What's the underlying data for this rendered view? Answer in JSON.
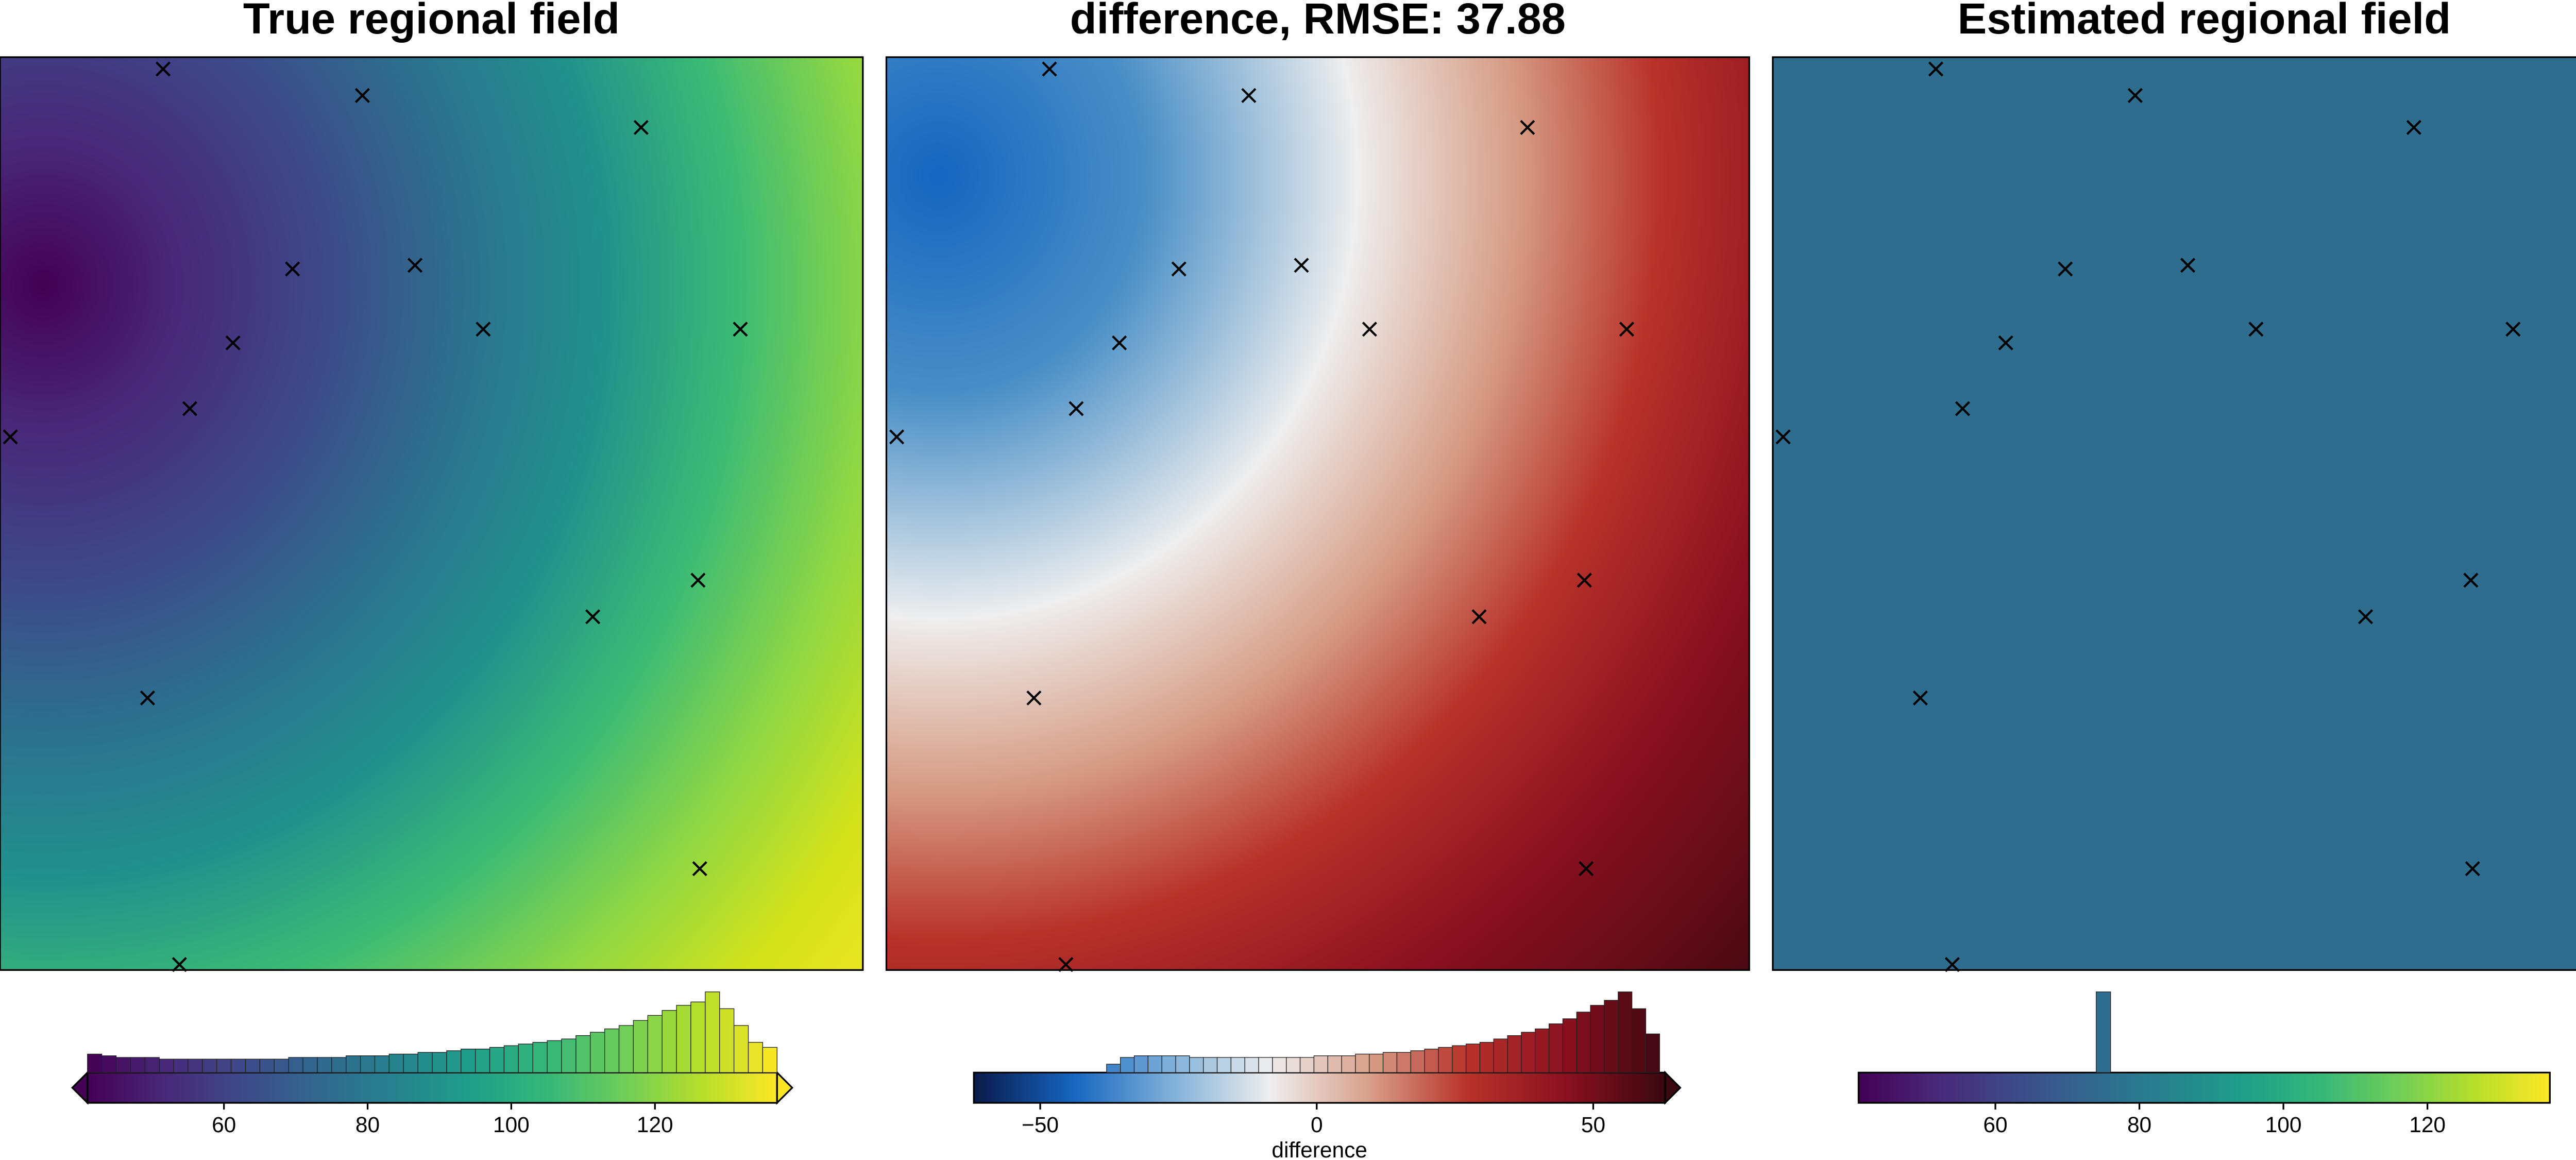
{
  "chart_data": [
    {
      "type": "heatmap",
      "title": "True regional field",
      "colormap": [
        "#440154",
        "#482878",
        "#3e4989",
        "#31688e",
        "#26828e",
        "#1f9e89",
        "#35b779",
        "#6ece58",
        "#b5de2b",
        "#fde725"
      ],
      "clim": [
        41,
        137
      ],
      "cticks": [
        60,
        80,
        100,
        120
      ],
      "extend": "both",
      "bins": [
        41,
        43,
        45,
        47,
        49,
        51,
        53,
        55,
        57,
        59,
        61,
        63,
        65,
        67,
        69,
        71,
        73,
        75,
        77,
        79,
        81,
        83,
        85,
        87,
        89,
        91,
        93,
        95,
        97,
        99,
        101,
        103,
        105,
        107,
        109,
        111,
        113,
        115,
        117,
        119,
        121,
        123,
        125,
        127,
        129,
        131,
        133,
        135,
        137
      ],
      "counts": [
        11,
        10,
        9,
        9,
        9,
        8,
        8,
        8,
        8,
        8,
        8,
        8,
        8,
        8,
        9,
        9,
        9,
        9,
        10,
        10,
        10,
        11,
        11,
        12,
        12,
        13,
        14,
        14,
        15,
        16,
        17,
        18,
        19,
        20,
        22,
        24,
        26,
        28,
        31,
        34,
        37,
        40,
        42,
        48,
        38,
        28,
        18,
        15
      ]
    },
    {
      "type": "heatmap",
      "title": "difference, RMSE: 37.88",
      "colormap": [
        "#0a1a4a",
        "#1565c0",
        "#7fb0d8",
        "#eeeeee",
        "#d8a08a",
        "#b8322a",
        "#8a1020",
        "#3a0810"
      ],
      "clim": [
        -62,
        63
      ],
      "cticks": [
        {
          "value": -50,
          "label": "−50"
        },
        0,
        50
      ],
      "extend": "max",
      "clabel": "difference",
      "bins": [
        -38,
        -35.5,
        -33,
        -30.5,
        -28,
        -25.5,
        -23,
        -20.5,
        -18,
        -15.5,
        -13,
        -10.5,
        -8,
        -5.5,
        -3,
        -0.5,
        2,
        4.5,
        7,
        9.5,
        12,
        14.5,
        17,
        19.5,
        22,
        24.5,
        27,
        29.5,
        32,
        34.5,
        37,
        39.5,
        42,
        44.5,
        47,
        49.5,
        52,
        54.5,
        57,
        59.5,
        62
      ],
      "counts": [
        5,
        9,
        10,
        10,
        10,
        10,
        9,
        9,
        9,
        9,
        9,
        9,
        9,
        9,
        9,
        10,
        10,
        10,
        11,
        11,
        12,
        12,
        13,
        14,
        15,
        16,
        17,
        18,
        20,
        22,
        24,
        26,
        29,
        32,
        36,
        40,
        43,
        48,
        38,
        23
      ]
    },
    {
      "type": "heatmap",
      "title": "Estimated regional field",
      "colormap": [
        "#440154",
        "#482878",
        "#3e4989",
        "#31688e",
        "#26828e",
        "#1f9e89",
        "#35b779",
        "#6ece58",
        "#b5de2b",
        "#fde725"
      ],
      "clim": [
        41,
        137
      ],
      "cticks": [
        60,
        80,
        100,
        120
      ],
      "extend": "none",
      "bins": [
        74,
        76
      ],
      "counts": [
        48
      ]
    }
  ],
  "points": {
    "x": [
      18.9,
      42.0,
      74.3,
      33.9,
      48.1,
      27.0,
      56.0,
      85.8,
      22.0,
      1.2,
      80.9,
      68.7,
      17.1,
      81.1,
      20.8
    ],
    "y": [
      1.3,
      4.2,
      7.7,
      23.2,
      22.8,
      31.3,
      29.8,
      29.8,
      38.5,
      41.6,
      57.3,
      61.3,
      70.2,
      88.9,
      99.4
    ]
  }
}
